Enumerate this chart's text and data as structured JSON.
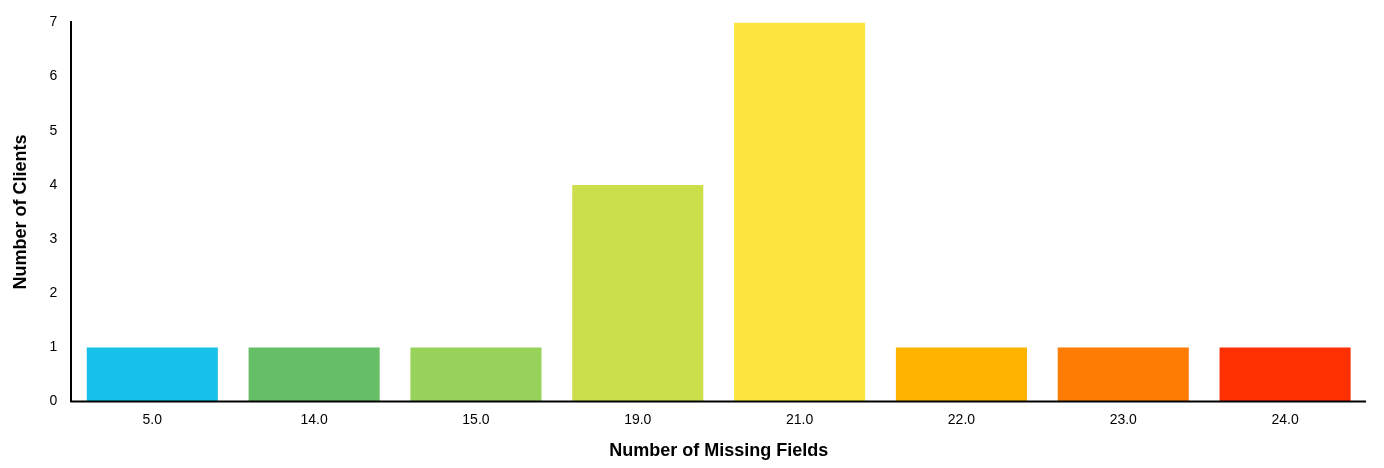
{
  "chart_data": {
    "type": "bar",
    "xlabel": "Number of Missing Fields",
    "ylabel": "Number of Clients",
    "categories": [
      "5.0",
      "14.0",
      "15.0",
      "19.0",
      "21.0",
      "22.0",
      "23.0",
      "24.0"
    ],
    "values": [
      1,
      1,
      1,
      4,
      7,
      1,
      1,
      1
    ],
    "colors": [
      "#17c0e8",
      "#66bf66",
      "#98d25a",
      "#cbdf4b",
      "#fde63f",
      "#feb300",
      "#fe7c02",
      "#fe2f01"
    ],
    "ylim": [
      0,
      7
    ],
    "yticks": [
      0,
      1,
      2,
      3,
      4,
      5,
      6,
      7
    ],
    "grid": false,
    "legend": false
  }
}
